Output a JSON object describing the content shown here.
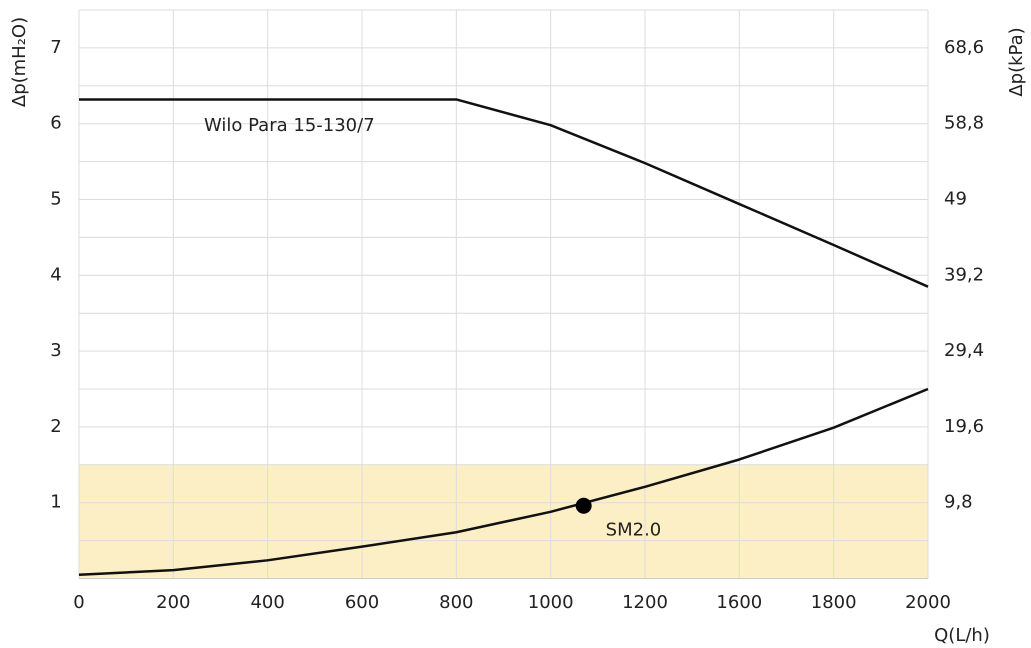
{
  "chart_data": {
    "type": "line",
    "x_label": "Q(L/h)",
    "y_label": "Δp(mH₂O)",
    "y2_label": "Δp(kPa)",
    "xlim": [
      0,
      2000
    ],
    "xticks": [
      0,
      200,
      400,
      600,
      800,
      1000,
      1200,
      1600,
      1800,
      2000
    ],
    "ylim": [
      0,
      7.5
    ],
    "yticks": [
      1,
      2,
      3,
      4,
      5,
      6,
      7
    ],
    "ygrid": [
      0.5,
      1,
      1.5,
      2,
      2.5,
      3,
      3.5,
      4,
      4.5,
      5,
      5.5,
      6,
      6.5,
      7,
      7.5
    ],
    "y2lim": [
      0,
      73.5
    ],
    "y2ticks": [
      {
        "value": 9.8,
        "label": "9,8"
      },
      {
        "value": 19.6,
        "label": "19,6"
      },
      {
        "value": 29.4,
        "label": "29,4"
      },
      {
        "value": 39.2,
        "label": "39,2"
      },
      49,
      {
        "value": 58.8,
        "label": "58,8"
      },
      {
        "value": 68.6,
        "label": "68,6"
      }
    ],
    "grid": true,
    "shaded_band": {
      "ylim": [
        0,
        1.5
      ],
      "color": "#fcefc6"
    },
    "series": [
      {
        "name": "Wilo Para 15-130/7",
        "color": "#111111",
        "x": [
          0,
          800,
          1000,
          1200,
          1600,
          1800,
          2000
        ],
        "values": [
          6.32,
          6.32,
          5.98,
          5.48,
          4.94,
          4.4,
          3.85
        ]
      },
      {
        "color": "#111111",
        "x": [
          0,
          200,
          400,
          600,
          800,
          1000,
          1200,
          1600,
          1800,
          2000
        ],
        "values": [
          0.05,
          0.11,
          0.24,
          0.42,
          0.61,
          0.88,
          1.21,
          1.57,
          1.99,
          2.5
        ]
      }
    ],
    "point": {
      "name": "SM2.0",
      "x": 1070,
      "y": 0.96,
      "color": "#000000"
    }
  }
}
